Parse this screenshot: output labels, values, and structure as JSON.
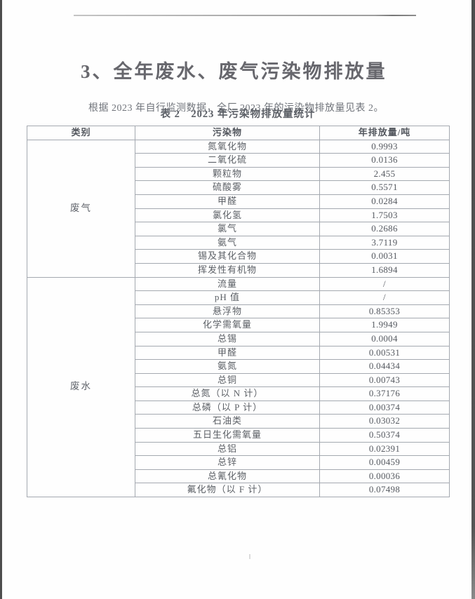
{
  "page": {
    "section_title": "3、全年废水、废气污染物排放量",
    "intro": "根据 2023 年自行监测数据，全厂 2023 年的污染物排放量见表 2。",
    "table_caption": "表 2　2023 年污染物排放量统计"
  },
  "table": {
    "headers": {
      "category": "类别",
      "pollutant": "污染物",
      "amount": "年排放量/吨"
    },
    "categories": [
      {
        "name": "废气",
        "rows": [
          {
            "pollutant": "氮氧化物",
            "amount": "0.9993"
          },
          {
            "pollutant": "二氧化硫",
            "amount": "0.0136"
          },
          {
            "pollutant": "颗粒物",
            "amount": "2.455"
          },
          {
            "pollutant": "硫酸雾",
            "amount": "0.5571"
          },
          {
            "pollutant": "甲醛",
            "amount": "0.0284"
          },
          {
            "pollutant": "氯化氢",
            "amount": "1.7503"
          },
          {
            "pollutant": "氯气",
            "amount": "0.2686"
          },
          {
            "pollutant": "氨气",
            "amount": "3.7119"
          },
          {
            "pollutant": "锡及其化合物",
            "amount": "0.0031"
          },
          {
            "pollutant": "挥发性有机物",
            "amount": "1.6894"
          }
        ]
      },
      {
        "name": "废水",
        "rows": [
          {
            "pollutant": "流量",
            "amount": "/"
          },
          {
            "pollutant": "pH 值",
            "amount": "/"
          },
          {
            "pollutant": "悬浮物",
            "amount": "0.85353"
          },
          {
            "pollutant": "化学需氧量",
            "amount": "1.9949"
          },
          {
            "pollutant": "总锡",
            "amount": "0.0004"
          },
          {
            "pollutant": "甲醛",
            "amount": "0.00531"
          },
          {
            "pollutant": "氨氮",
            "amount": "0.04434"
          },
          {
            "pollutant": "总铜",
            "amount": "0.00743"
          },
          {
            "pollutant": "总氮（以 N 计）",
            "amount": "0.37176"
          },
          {
            "pollutant": "总磷（以 P 计）",
            "amount": "0.00374"
          },
          {
            "pollutant": "石油类",
            "amount": "0.03032"
          },
          {
            "pollutant": "五日生化需氧量",
            "amount": "0.50374"
          },
          {
            "pollutant": "总铝",
            "amount": "0.02391"
          },
          {
            "pollutant": "总锌",
            "amount": "0.00459"
          },
          {
            "pollutant": "总氰化物",
            "amount": "0.00036"
          },
          {
            "pollutant": "氟化物（以 F 计）",
            "amount": "0.07498"
          }
        ]
      }
    ]
  },
  "colors": {
    "text": "#5c6066",
    "title": "#67676d",
    "border": "#a4a9b0",
    "scan_edge": "#4e4e4e"
  }
}
